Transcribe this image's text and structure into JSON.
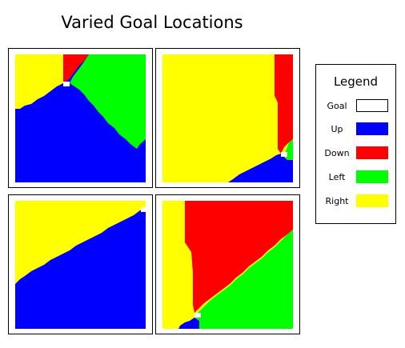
{
  "title": "Varied Goal Locations",
  "legend": {
    "title": "Legend",
    "items": [
      {
        "label": "Goal",
        "color": "#ffffff"
      },
      {
        "label": "Up",
        "color": "#0000ff"
      },
      {
        "label": "Down",
        "color": "#ff0000"
      },
      {
        "label": "Left",
        "color": "#00ff00"
      },
      {
        "label": "Right",
        "color": "#ffff00"
      }
    ]
  },
  "colors": {
    "up": "#0000ff",
    "down": "#ff0000",
    "left": "#00ff00",
    "right": "#ffff00",
    "goal": "#ffffff"
  },
  "panels": [
    {
      "goal_position": "top-center",
      "regions": [
        "Right",
        "Down",
        "Left",
        "Up"
      ]
    },
    {
      "goal_position": "right-lower",
      "regions": [
        "Right",
        "Down",
        "Left",
        "Up"
      ]
    },
    {
      "goal_position": "top-right-corner",
      "regions": [
        "Right",
        "Up"
      ]
    },
    {
      "goal_position": "bottom-center-left",
      "regions": [
        "Right",
        "Down",
        "Left",
        "Up"
      ]
    }
  ]
}
